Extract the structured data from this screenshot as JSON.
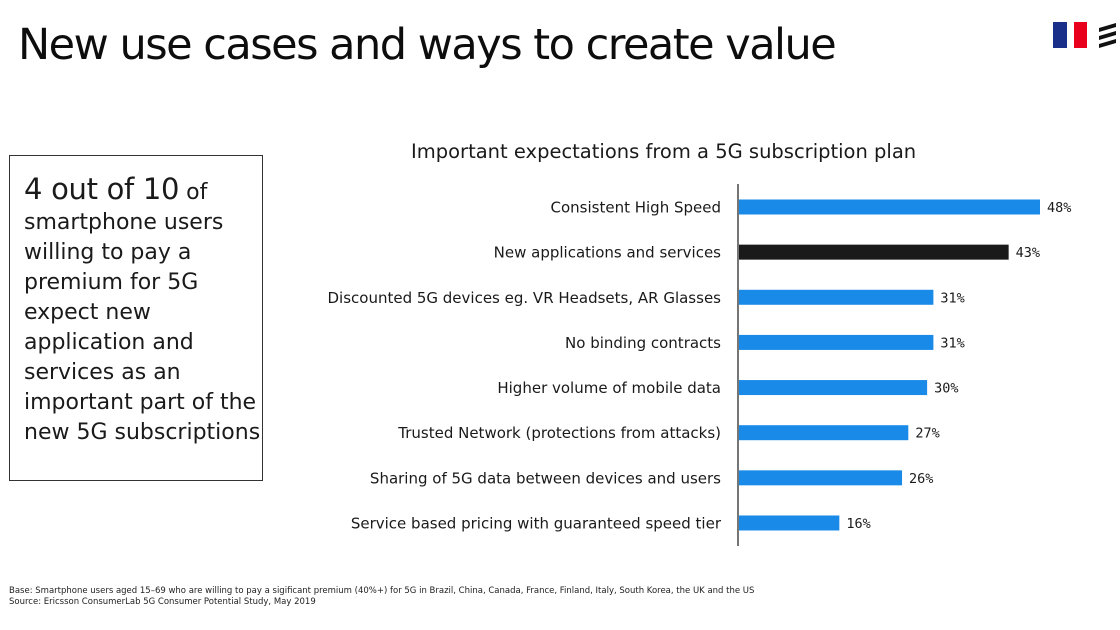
{
  "header": {
    "title": "New use cases and ways to create value"
  },
  "flag": {
    "colors": [
      "#1a2f8a",
      "#ffffff",
      "#e8001c"
    ]
  },
  "brand": {
    "logo_icon": "ericsson-logo-icon"
  },
  "callout": {
    "headline": "4 out of 10",
    "headline_suffix": "of",
    "lines": [
      "smartphone users",
      "willing to pay a",
      "premium for 5G",
      "expect new",
      "application and",
      "services as an",
      "important part of the",
      "new 5G subscriptions"
    ]
  },
  "chart_data": {
    "type": "bar",
    "orientation": "horizontal",
    "title": "Important expectations from a 5G subscription plan",
    "categories": [
      "Consistent High Speed",
      "New applications and services",
      "Discounted 5G devices eg. VR Headsets, AR Glasses",
      "No binding contracts",
      "Higher volume of mobile data",
      "Trusted Network (protections from attacks)",
      "Sharing of 5G data between devices and users",
      "Service based pricing with guaranteed speed tier"
    ],
    "values": [
      48,
      43,
      31,
      31,
      30,
      27,
      26,
      16
    ],
    "labels": [
      "48%",
      "43%",
      "31%",
      "31%",
      "30%",
      "27%",
      "26%",
      "16%"
    ],
    "highlight_index": 1,
    "colors": {
      "bar": "#1a8ae8",
      "highlight": "#1a1a1a",
      "axis": "#1a1a1a"
    },
    "xlim": [
      0,
      50
    ],
    "grid": false,
    "legend": "none"
  },
  "footnote": {
    "base": "Base: Smartphone users aged 15–69 who are willing to pay a sigificant premium (40%+) for 5G in Brazil, China, Canada, France, Finland, Italy, South Korea, the UK and the US",
    "source": "Source: Ericsson ConsumerLab 5G Consumer Potential Study, May 2019"
  }
}
